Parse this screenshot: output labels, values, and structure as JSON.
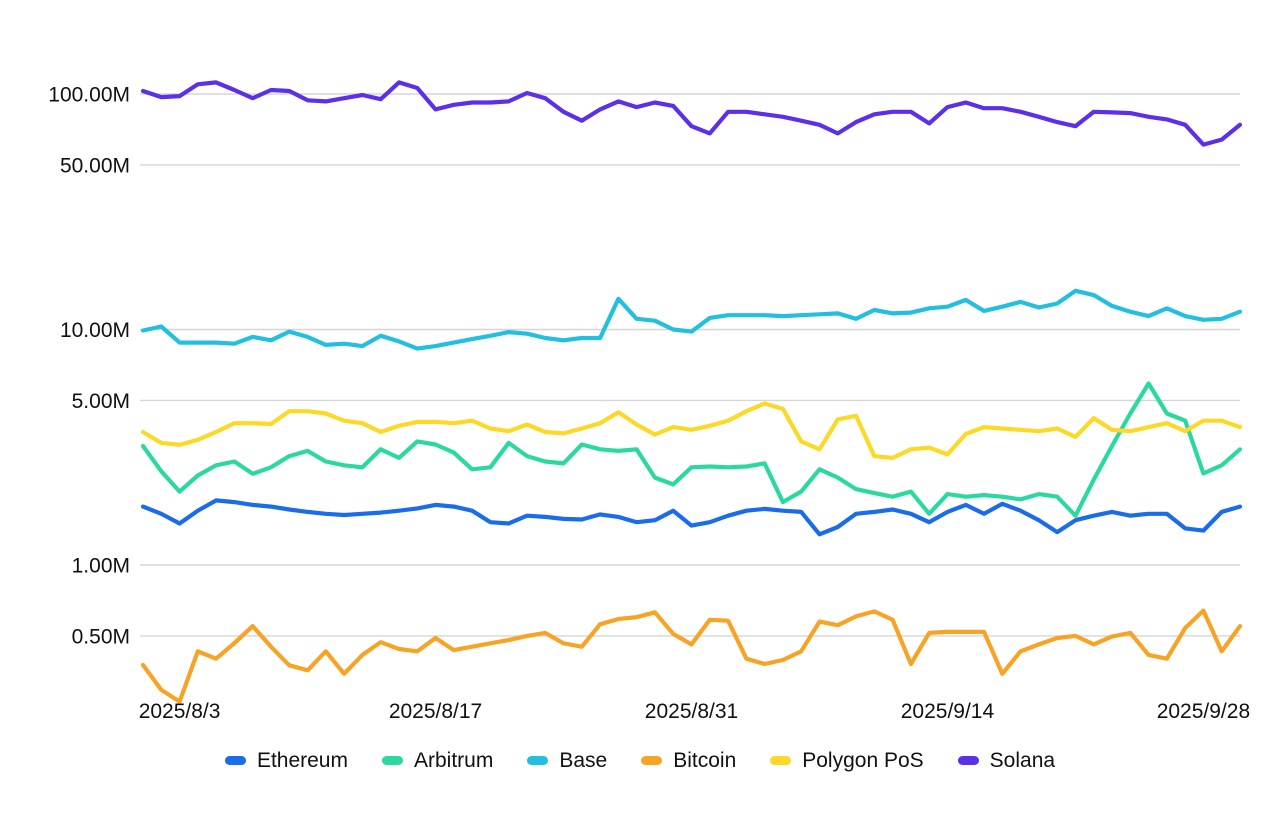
{
  "chart_data": {
    "type": "line",
    "title": "",
    "y_scale": "log",
    "grid": "horizontal-only",
    "legend_position": "bottom",
    "x_points": 61,
    "x_range_days": [
      "2025/8/1",
      "2025/9/30"
    ],
    "x_ticks": [
      {
        "label": "2025/8/3",
        "day_index": 2
      },
      {
        "label": "2025/8/17",
        "day_index": 16
      },
      {
        "label": "2025/8/31",
        "day_index": 30
      },
      {
        "label": "2025/9/14",
        "day_index": 44
      },
      {
        "label": "2025/9/28",
        "day_index": 58
      }
    ],
    "y_ticks": [
      {
        "label": "100.00M",
        "value_millions": 100
      },
      {
        "label": "50.00M",
        "value_millions": 50
      },
      {
        "label": "10.00M",
        "value_millions": 10
      },
      {
        "label": "5.00M",
        "value_millions": 5
      },
      {
        "label": "1.00M",
        "value_millions": 1
      },
      {
        "label": "0.50M",
        "value_millions": 0.5
      }
    ],
    "unit": "millions",
    "series": [
      {
        "name": "Ethereum",
        "color": "#1a6ce8",
        "values": [
          1.77,
          1.65,
          1.5,
          1.7,
          1.88,
          1.85,
          1.8,
          1.77,
          1.72,
          1.68,
          1.65,
          1.63,
          1.65,
          1.67,
          1.7,
          1.74,
          1.8,
          1.77,
          1.7,
          1.52,
          1.5,
          1.62,
          1.6,
          1.57,
          1.56,
          1.64,
          1.6,
          1.52,
          1.55,
          1.7,
          1.47,
          1.52,
          1.62,
          1.7,
          1.73,
          1.7,
          1.68,
          1.35,
          1.45,
          1.65,
          1.68,
          1.72,
          1.65,
          1.52,
          1.68,
          1.8,
          1.65,
          1.82,
          1.7,
          1.55,
          1.38,
          1.55,
          1.62,
          1.68,
          1.62,
          1.65,
          1.65,
          1.43,
          1.4,
          1.68,
          1.77
        ]
      },
      {
        "name": "Arbitrum",
        "color": "#2bd9a0",
        "values": [
          3.2,
          2.5,
          2.05,
          2.4,
          2.65,
          2.75,
          2.44,
          2.6,
          2.9,
          3.05,
          2.75,
          2.65,
          2.6,
          3.1,
          2.85,
          3.35,
          3.25,
          3.0,
          2.55,
          2.6,
          3.3,
          2.9,
          2.75,
          2.7,
          3.25,
          3.1,
          3.05,
          3.1,
          2.35,
          2.2,
          2.6,
          2.62,
          2.6,
          2.62,
          2.7,
          1.85,
          2.05,
          2.55,
          2.35,
          2.1,
          2.02,
          1.95,
          2.05,
          1.65,
          2.0,
          1.95,
          1.98,
          1.95,
          1.9,
          2.0,
          1.95,
          1.62,
          2.3,
          3.2,
          4.4,
          5.9,
          4.4,
          4.1,
          2.45,
          2.65,
          3.1
        ]
      },
      {
        "name": "Base",
        "color": "#22bfe0",
        "values": [
          9.9,
          10.3,
          8.8,
          8.8,
          8.8,
          8.7,
          9.3,
          9.0,
          9.8,
          9.3,
          8.6,
          8.7,
          8.5,
          9.4,
          8.9,
          8.3,
          8.5,
          8.8,
          9.1,
          9.4,
          9.75,
          9.6,
          9.2,
          9.0,
          9.2,
          9.2,
          13.5,
          11.1,
          10.9,
          10.0,
          9.8,
          11.2,
          11.5,
          11.5,
          11.5,
          11.4,
          11.5,
          11.6,
          11.7,
          11.1,
          12.1,
          11.7,
          11.8,
          12.3,
          12.5,
          13.35,
          12.0,
          12.5,
          13.1,
          12.4,
          12.9,
          14.6,
          14.0,
          12.6,
          11.9,
          11.4,
          12.3,
          11.4,
          11.0,
          11.1,
          11.9
        ]
      },
      {
        "name": "Bitcoin",
        "color": "#f7a325",
        "values": [
          0.376,
          0.295,
          0.263,
          0.43,
          0.4,
          0.466,
          0.55,
          0.45,
          0.375,
          0.357,
          0.43,
          0.345,
          0.415,
          0.47,
          0.44,
          0.43,
          0.49,
          0.435,
          0.45,
          0.465,
          0.48,
          0.5,
          0.515,
          0.465,
          0.45,
          0.56,
          0.59,
          0.6,
          0.63,
          0.51,
          0.46,
          0.585,
          0.58,
          0.4,
          0.38,
          0.395,
          0.43,
          0.575,
          0.555,
          0.605,
          0.635,
          0.585,
          0.38,
          0.515,
          0.52,
          0.52,
          0.52,
          0.345,
          0.43,
          0.46,
          0.49,
          0.5,
          0.46,
          0.497,
          0.515,
          0.415,
          0.4,
          0.54,
          0.64,
          0.43,
          0.55
        ]
      },
      {
        "name": "Polygon PoS",
        "color": "#fbd926",
        "values": [
          3.67,
          3.3,
          3.24,
          3.4,
          3.67,
          4.0,
          4.0,
          3.97,
          4.5,
          4.5,
          4.4,
          4.1,
          4.0,
          3.67,
          3.9,
          4.05,
          4.05,
          4.0,
          4.1,
          3.8,
          3.7,
          3.95,
          3.67,
          3.62,
          3.8,
          4.0,
          4.45,
          3.95,
          3.58,
          3.85,
          3.75,
          3.9,
          4.1,
          4.5,
          4.85,
          4.6,
          3.35,
          3.1,
          4.15,
          4.3,
          2.9,
          2.85,
          3.1,
          3.15,
          2.95,
          3.6,
          3.85,
          3.8,
          3.75,
          3.7,
          3.8,
          3.5,
          4.2,
          3.75,
          3.7,
          3.85,
          4.0,
          3.7,
          4.1,
          4.1,
          3.85
        ]
      },
      {
        "name": "Solana",
        "color": "#5b30e8",
        "values": [
          103,
          97,
          98,
          110,
          112,
          104,
          96,
          104,
          103,
          94,
          93,
          96,
          99,
          95,
          112,
          106,
          86,
          90,
          92,
          92,
          93,
          101,
          96,
          84,
          77,
          86,
          93,
          88,
          92,
          89,
          73,
          68,
          84,
          84,
          82,
          80,
          77,
          74,
          68,
          76,
          82,
          84,
          84,
          75,
          88,
          92,
          87,
          87,
          84,
          80,
          76,
          73,
          84,
          83.5,
          83,
          80,
          78,
          74,
          61,
          64,
          74
        ]
      }
    ],
    "style": {
      "gridline_color": "#d6d6d6",
      "background": "#ffffff",
      "text_color": "#111111",
      "line_width": 4.2
    }
  }
}
